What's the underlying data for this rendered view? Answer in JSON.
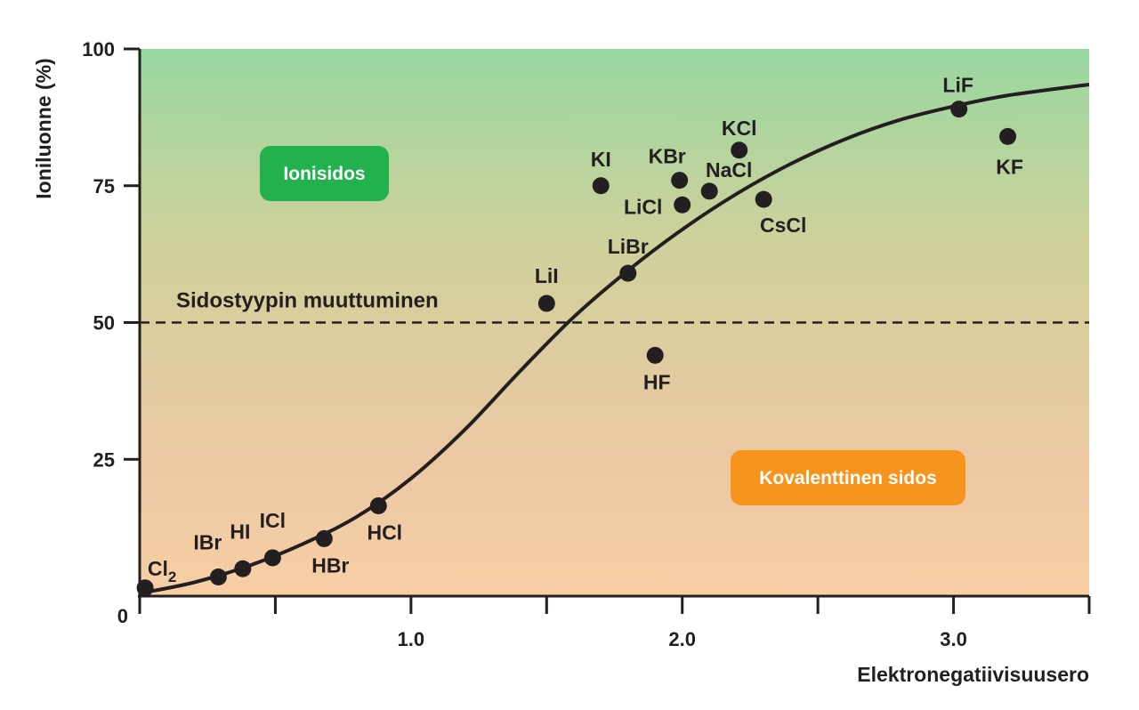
{
  "chart_data": {
    "type": "scatter",
    "xlabel": "Elektronegatiivisuusero",
    "ylabel": "Ioniluonne (%)",
    "xlim": [
      0,
      3.5
    ],
    "ylim": [
      0,
      100
    ],
    "x_ticks": [
      0.5,
      1.0,
      1.5,
      2.0,
      2.5,
      3.0,
      3.5
    ],
    "x_tick_labels": [
      "1.0",
      "2.0",
      "3.0"
    ],
    "x_tick_label_values": [
      1.0,
      2.0,
      3.0
    ],
    "y_ticks": [
      0,
      25,
      50,
      75,
      100
    ],
    "y_tick_labels": [
      "0",
      "25",
      "50",
      "75",
      "100"
    ],
    "grid": false,
    "background_gradient": [
      "#98d7a0",
      "#cfd19c",
      "#ecc8a3",
      "#f7cfa5"
    ],
    "point_color": "#231f20",
    "points": [
      {
        "label": "Cl",
        "subscript": "2",
        "x": 0.02,
        "y": 1.5
      },
      {
        "label": "IBr",
        "x": 0.29,
        "y": 3.5
      },
      {
        "label": "HI",
        "x": 0.38,
        "y": 5.0
      },
      {
        "label": "ICl",
        "x": 0.49,
        "y": 7.0
      },
      {
        "label": "HBr",
        "x": 0.68,
        "y": 10.5
      },
      {
        "label": "HCl",
        "x": 0.88,
        "y": 16.5
      },
      {
        "label": "LiI",
        "x": 1.5,
        "y": 53.5
      },
      {
        "label": "LiBr",
        "x": 1.8,
        "y": 59.0
      },
      {
        "label": "HF",
        "x": 1.9,
        "y": 44.0
      },
      {
        "label": "KI",
        "x": 1.7,
        "y": 75.0
      },
      {
        "label": "KBr",
        "x": 1.99,
        "y": 76.0
      },
      {
        "label": "LiCl",
        "x": 2.0,
        "y": 71.5
      },
      {
        "label": "NaCl",
        "x": 2.1,
        "y": 74.0
      },
      {
        "label": "KCl",
        "x": 2.21,
        "y": 81.5
      },
      {
        "label": "CsCl",
        "x": 2.3,
        "y": 72.5
      },
      {
        "label": "LiF",
        "x": 3.02,
        "y": 89.0
      },
      {
        "label": "KF",
        "x": 3.2,
        "y": 84.0
      }
    ],
    "curve": {
      "x": [
        0,
        0.2,
        0.4,
        0.6,
        0.8,
        1.0,
        1.2,
        1.4,
        1.6,
        1.8,
        2.0,
        2.2,
        2.4,
        2.6,
        2.8,
        3.0,
        3.2,
        3.5
      ],
      "y": [
        0.5,
        2.5,
        5.5,
        9.5,
        14.5,
        21.5,
        30.5,
        41.0,
        51.0,
        59.5,
        67.0,
        73.5,
        79.0,
        83.5,
        87.0,
        89.5,
        91.5,
        93.5
      ]
    },
    "reference_line": {
      "y": 50,
      "style": "dashed",
      "label": "Sidostyypin muuttuminen"
    },
    "annotations": [
      {
        "text": "Ionisidos",
        "color": "#22b14c"
      },
      {
        "text": "Kovalenttinen sidos",
        "color": "#f7941d"
      }
    ]
  }
}
